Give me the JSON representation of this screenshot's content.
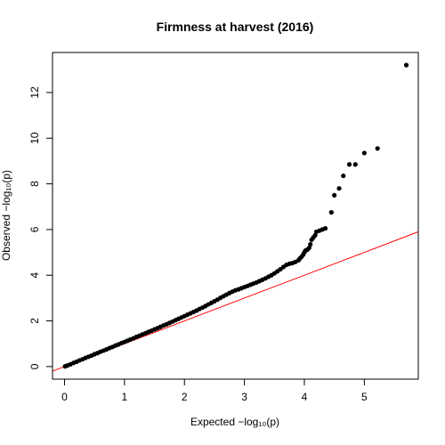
{
  "chart_data": {
    "type": "scatter",
    "title": "Firmness at harvest (2016)",
    "xlabel": "Expected  −log₁₀(p)",
    "ylabel": "Observed  −log₁₀(p)",
    "xlim": [
      -0.2,
      5.9
    ],
    "ylim": [
      -0.55,
      13.75
    ],
    "x_ticks": [
      0,
      1,
      2,
      3,
      4,
      5
    ],
    "y_ticks": [
      0,
      2,
      4,
      6,
      8,
      10,
      12
    ],
    "grid": false,
    "legend": "none",
    "reference_line": {
      "type": "y = x",
      "color": "#ff0000"
    },
    "point_color": "#000000",
    "series": [
      {
        "points_x": [
          0.01,
          0.05,
          0.1,
          0.15,
          0.2,
          0.25,
          0.3,
          0.35,
          0.4,
          0.45,
          0.5,
          0.55,
          0.6,
          0.65,
          0.7,
          0.75,
          0.8,
          0.85,
          0.9,
          0.95,
          1.0,
          1.05,
          1.1,
          1.15,
          1.2,
          1.25,
          1.3,
          1.35,
          1.4,
          1.45,
          1.5,
          1.55,
          1.6,
          1.65,
          1.7,
          1.75,
          1.8,
          1.85,
          1.9,
          1.95,
          2.0,
          2.05,
          2.1,
          2.15,
          2.2,
          2.25,
          2.3,
          2.35,
          2.4,
          2.45,
          2.5,
          2.55,
          2.6,
          2.65,
          2.7,
          2.75,
          2.8,
          2.85,
          2.9,
          2.95,
          3.0,
          3.05,
          3.1,
          3.15,
          3.2,
          3.25,
          3.3,
          3.35,
          3.4,
          3.45,
          3.5,
          3.55,
          3.6,
          3.65,
          3.7,
          3.75,
          3.8,
          3.85,
          3.9,
          3.92,
          3.95,
          3.98,
          4.0,
          4.02,
          4.05,
          4.08,
          4.1,
          4.12,
          4.15,
          4.18,
          4.2,
          4.25,
          4.3,
          4.35,
          4.45,
          4.5,
          4.58,
          4.65,
          4.75,
          4.85,
          5.0,
          5.22,
          5.7
        ],
        "points_y": [
          0.01,
          0.05,
          0.1,
          0.16,
          0.21,
          0.27,
          0.32,
          0.38,
          0.43,
          0.48,
          0.54,
          0.59,
          0.65,
          0.7,
          0.75,
          0.81,
          0.86,
          0.92,
          0.97,
          1.03,
          1.08,
          1.13,
          1.19,
          1.24,
          1.3,
          1.35,
          1.41,
          1.46,
          1.52,
          1.57,
          1.63,
          1.68,
          1.74,
          1.8,
          1.85,
          1.91,
          1.97,
          2.03,
          2.09,
          2.15,
          2.21,
          2.27,
          2.33,
          2.39,
          2.45,
          2.52,
          2.58,
          2.65,
          2.72,
          2.79,
          2.86,
          2.93,
          3.01,
          3.08,
          3.15,
          3.22,
          3.28,
          3.34,
          3.38,
          3.43,
          3.48,
          3.53,
          3.58,
          3.63,
          3.68,
          3.74,
          3.8,
          3.86,
          3.93,
          4.0,
          4.08,
          4.17,
          4.26,
          4.36,
          4.45,
          4.5,
          4.53,
          4.58,
          4.65,
          4.72,
          4.8,
          4.9,
          5.0,
          5.08,
          5.12,
          5.2,
          5.35,
          5.55,
          5.65,
          5.75,
          5.9,
          5.95,
          6.0,
          6.05,
          6.75,
          7.5,
          7.8,
          8.35,
          8.85,
          8.85,
          9.35,
          9.55,
          13.2
        ]
      }
    ]
  }
}
